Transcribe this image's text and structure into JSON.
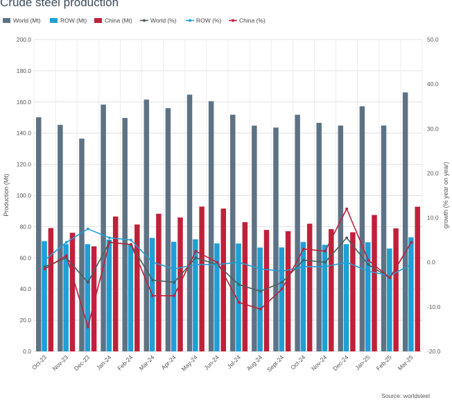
{
  "chart_data": {
    "type": "bar",
    "title": "Crude steel production",
    "source": "Source: worldsteel",
    "ylabel": "Production (Mt)",
    "y2label": "growth (% year on year)",
    "ylim": [
      0,
      200
    ],
    "y2lim": [
      -20,
      50
    ],
    "yticks": [
      "0.0",
      "20.0",
      "40.0",
      "60.0",
      "80.0",
      "100.0",
      "120.0",
      "140.0",
      "160.0",
      "180.0",
      "200.0"
    ],
    "y2ticks": [
      "-20.0",
      "-10.0",
      "0.0",
      "10.0",
      "20.0",
      "30.0",
      "40.0",
      "50.0"
    ],
    "grid": true,
    "legend_placement": "top",
    "categories": [
      "Oct-23",
      "Nov-23",
      "Dec-23",
      "Jan-24",
      "Feb-24",
      "Mar-24",
      "Apr-24",
      "May-24",
      "Jun-24",
      "Jul-24",
      "Aug-24",
      "Sept-24",
      "Oct-24",
      "Nov-24",
      "Dec-24",
      "Jan-25",
      "Feb-25",
      "Mar-25"
    ],
    "series": [
      {
        "name": "World (Mt)",
        "kind": "bar",
        "axis": "left",
        "color": "#5d7385",
        "values": [
          150.2,
          145.3,
          136.5,
          158.3,
          149.7,
          161.5,
          156.0,
          164.7,
          160.5,
          151.8,
          144.8,
          143.6,
          151.8,
          146.6,
          144.9,
          157.2,
          144.9,
          166.1
        ]
      },
      {
        "name": "ROW (Mt)",
        "kind": "bar",
        "axis": "left",
        "color": "#1f9fd5",
        "values": [
          70.7,
          68.8,
          68.8,
          71.7,
          68.3,
          72.8,
          70.3,
          71.9,
          69.3,
          69.2,
          66.6,
          66.7,
          70.2,
          68.4,
          68.8,
          70.0,
          66.0,
          73.2
        ]
      },
      {
        "name": "China (Mt)",
        "kind": "bar",
        "axis": "left",
        "color": "#c0203a",
        "values": [
          79.1,
          76.1,
          67.4,
          86.5,
          81.4,
          88.3,
          85.9,
          92.9,
          91.6,
          82.9,
          77.9,
          77.1,
          81.9,
          78.4,
          76.4,
          87.5,
          78.9,
          92.8
        ]
      },
      {
        "name": "World (%)",
        "kind": "line",
        "axis": "right",
        "color": "#4a5f5a",
        "values": [
          -1.0,
          1.0,
          -4.5,
          4.5,
          4.0,
          -4.0,
          -4.5,
          1.0,
          -0.5,
          -5.0,
          -6.5,
          -4.5,
          0.5,
          0.0,
          5.5,
          -0.5,
          -3.5,
          4.5
        ]
      },
      {
        "name": "ROW (%)",
        "kind": "line",
        "axis": "right",
        "color": "#1f9fd5",
        "values": [
          0.5,
          4.5,
          7.5,
          5.5,
          5.0,
          0.0,
          -1.5,
          -0.5,
          -0.5,
          0.0,
          -1.5,
          -2.0,
          -1.0,
          -1.0,
          0.0,
          -2.0,
          -3.0,
          -0.5
        ]
      },
      {
        "name": "China (%)",
        "kind": "line",
        "axis": "right",
        "color": "#c0203a",
        "values": [
          -1.5,
          1.5,
          -14.5,
          4.5,
          4.0,
          -7.5,
          -7.5,
          2.5,
          0.0,
          -9.0,
          -10.5,
          -6.0,
          3.0,
          2.5,
          12.0,
          0.5,
          -3.5,
          4.5
        ]
      }
    ]
  }
}
